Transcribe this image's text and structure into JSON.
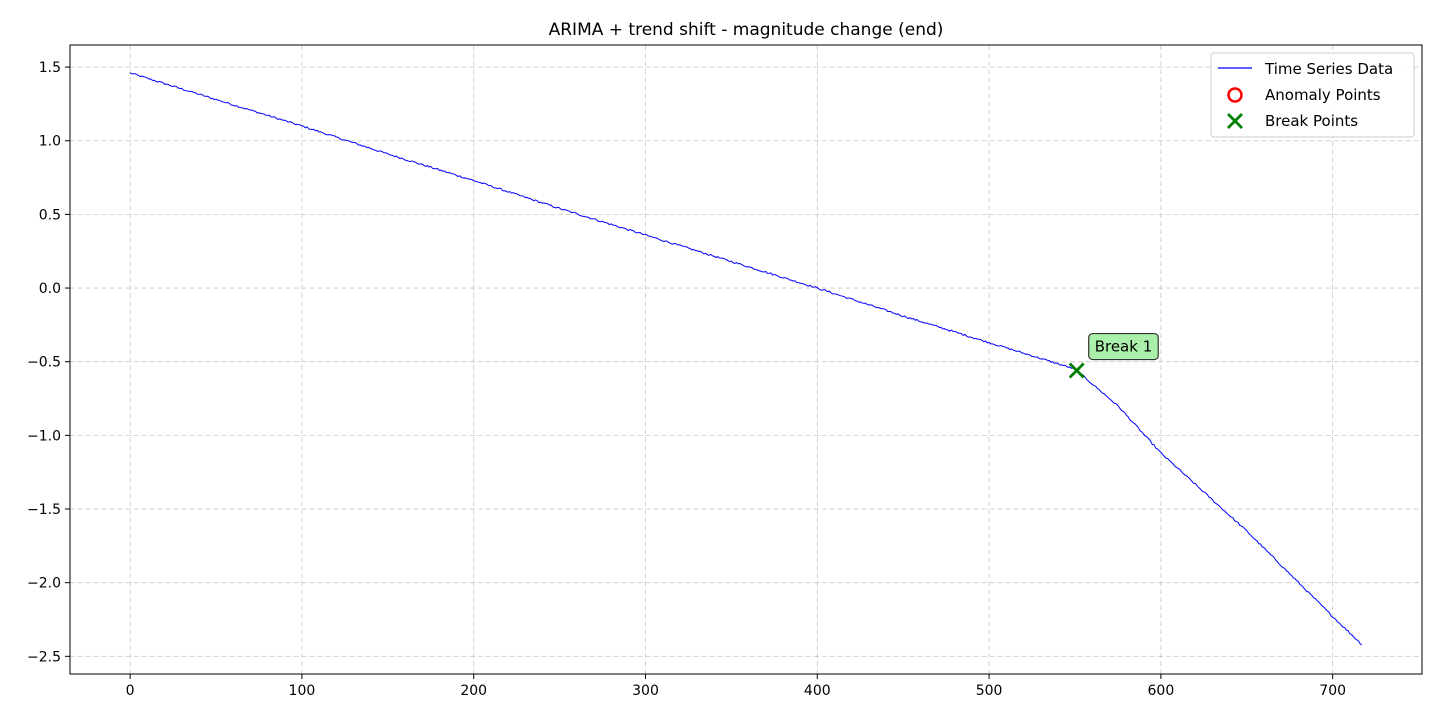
{
  "chart_data": {
    "type": "line",
    "title": "ARIMA + trend shift - magnitude change (end)",
    "xlabel": "",
    "ylabel": "",
    "xlim": [
      -35,
      752
    ],
    "ylim": [
      -2.62,
      1.65
    ],
    "x_ticks": [
      0,
      100,
      200,
      300,
      400,
      500,
      600,
      700
    ],
    "y_ticks": [
      1.5,
      1.0,
      0.5,
      0.0,
      -0.5,
      -1.0,
      -1.5,
      -2.0,
      -2.5
    ],
    "x_tick_labels": [
      "0",
      "100",
      "200",
      "300",
      "400",
      "500",
      "600",
      "700"
    ],
    "y_tick_labels": [
      "1.5",
      "1.0",
      "0.5",
      "0.0",
      "−0.5",
      "−1.0",
      "−1.5",
      "−2.0",
      "−2.5"
    ],
    "grid": true,
    "legend_placement": "top-right",
    "series": [
      {
        "name": "Time Series Data",
        "color": "#0000ff",
        "anchors": [
          [
            0,
            1.46
          ],
          [
            50,
            1.28
          ],
          [
            100,
            1.1
          ],
          [
            150,
            0.91
          ],
          [
            200,
            0.73
          ],
          [
            250,
            0.54
          ],
          [
            300,
            0.36
          ],
          [
            350,
            0.18
          ],
          [
            400,
            0.0
          ],
          [
            450,
            -0.19
          ],
          [
            500,
            -0.37
          ],
          [
            550,
            -0.55
          ],
          [
            575,
            -0.8
          ],
          [
            600,
            -1.12
          ],
          [
            650,
            -1.65
          ],
          [
            700,
            -2.23
          ],
          [
            717,
            -2.42
          ]
        ]
      }
    ],
    "anomaly_points": {
      "name": "Anomaly Points",
      "color": "#ff0000",
      "points": []
    },
    "break_points": {
      "name": "Break Points",
      "color": "#008000",
      "points": [
        [
          551,
          -0.56
        ]
      ]
    },
    "annotations": [
      {
        "text": "Break 1",
        "x": 551,
        "y": -0.56,
        "box_color": "#aaf0aa"
      }
    ]
  }
}
